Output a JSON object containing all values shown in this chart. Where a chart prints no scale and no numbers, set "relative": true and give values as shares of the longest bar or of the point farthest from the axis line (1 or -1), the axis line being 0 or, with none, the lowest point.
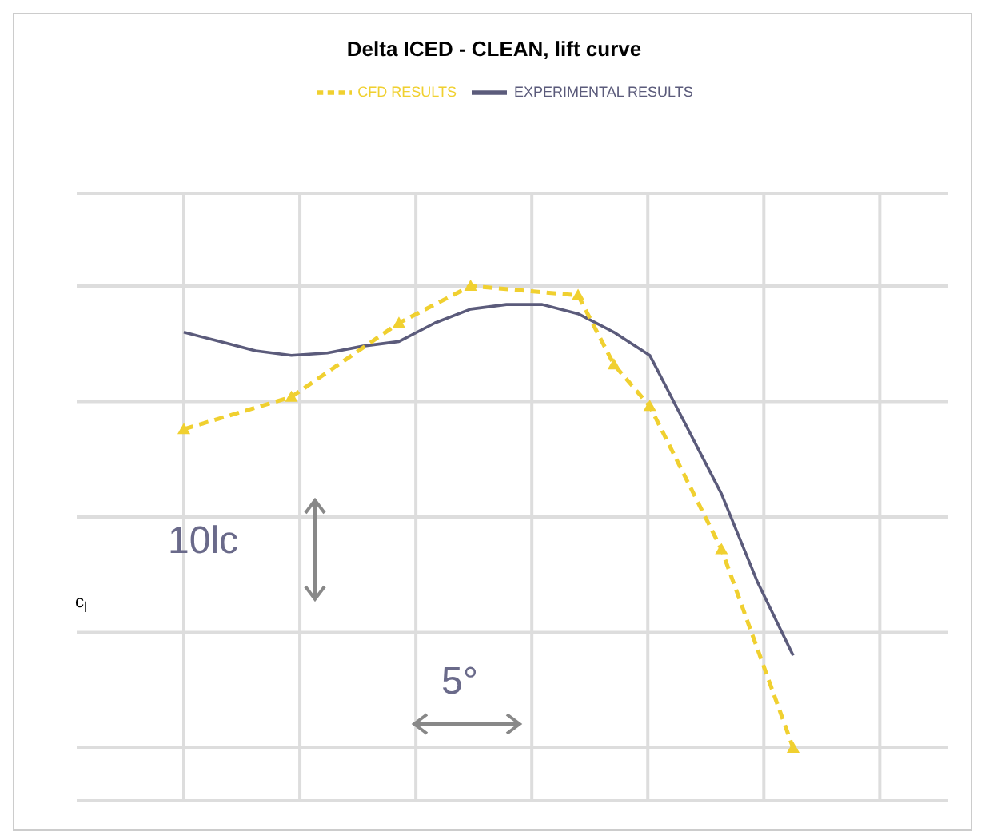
{
  "chart_data": {
    "type": "line",
    "title": "Delta ICED - CLEAN, lift curve",
    "ylabel": "c$_{l}$",
    "relative": true,
    "legend": "top",
    "grid": true,
    "categories": [
      null,
      null,
      null,
      null,
      null,
      null,
      null,
      null,
      null,
      null,
      null,
      null,
      null,
      null,
      null,
      null,
      null,
      null
    ],
    "annotations": [
      "10lc",
      "5°"
    ],
    "series": [
      {
        "name": "EXPERIMENTAL RESULTS",
        "color": "#5b5b7b",
        "line_style": "solid",
        "marker": "none",
        "values": [
          0.9,
          0.88,
          0.86,
          0.85,
          0.855,
          0.87,
          0.88,
          0.92,
          0.95,
          0.96,
          0.96,
          0.94,
          0.9,
          0.85,
          0.7,
          0.55,
          0.36,
          0.2
        ]
      },
      {
        "name": "CFD RESULTS",
        "color": "#f0d030",
        "line_style": "dashed",
        "marker": "triangle",
        "values": [
          0.69,
          null,
          null,
          0.76,
          null,
          null,
          0.92,
          null,
          1.0,
          null,
          null,
          0.98,
          0.83,
          0.74,
          null,
          0.43,
          null,
          0
        ]
      }
    ]
  }
}
